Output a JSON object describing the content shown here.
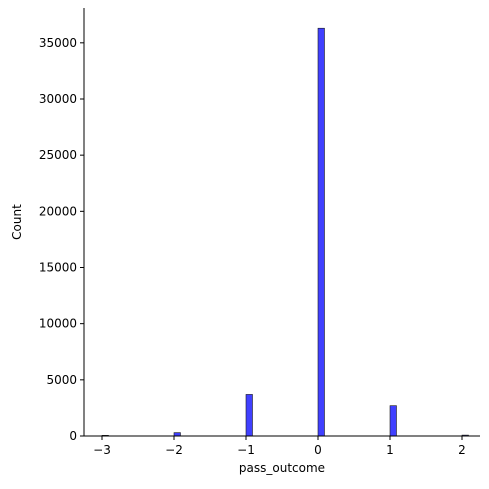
{
  "chart_data": {
    "type": "bar",
    "xlabel": "pass_outcome",
    "ylabel": "Count",
    "title": "",
    "xlim": [
      -3.25,
      2.25
    ],
    "ylim": [
      0,
      38100
    ],
    "xticks": [
      -3,
      -2,
      -1,
      0,
      1,
      2
    ],
    "xtick_labels": [
      "−3",
      "−2",
      "−1",
      "0",
      "1",
      "2"
    ],
    "yticks": [
      0,
      5000,
      10000,
      15000,
      20000,
      25000,
      30000,
      35000
    ],
    "ytick_labels": [
      "0",
      "5000",
      "10000",
      "15000",
      "20000",
      "25000",
      "30000",
      "35000"
    ],
    "bin_width": 0.1,
    "bins": [
      {
        "x": -3,
        "count": 60
      },
      {
        "x": -2,
        "count": 300
      },
      {
        "x": -1,
        "count": 3700
      },
      {
        "x": 0,
        "count": 36300
      },
      {
        "x": 1,
        "count": 2700
      },
      {
        "x": 2,
        "count": 80
      }
    ],
    "bar_color": "#0000ff",
    "grid": false,
    "spines": "left-bottom"
  }
}
